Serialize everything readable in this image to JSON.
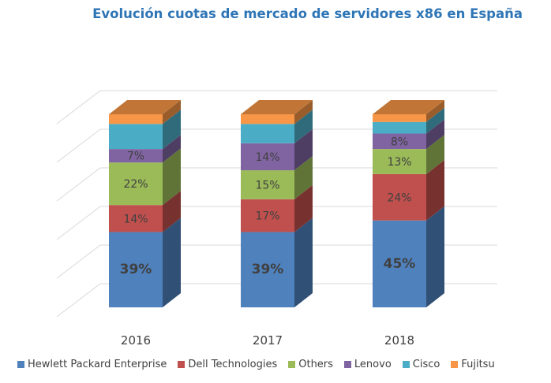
{
  "chart_data": {
    "type": "bar",
    "stacked": true,
    "three_d": true,
    "title": "Evolución cuotas de mercado de servidores x86 en España",
    "categories": [
      "2016",
      "2017",
      "2018"
    ],
    "ylim": [
      0,
      100
    ],
    "grid": true,
    "legend_position": "bottom",
    "series": [
      {
        "name": "Hewlett Packard Enterprise",
        "color": "#4f81bd",
        "values": [
          39,
          39,
          45
        ],
        "labels": [
          "39%",
          "39%",
          "45%"
        ]
      },
      {
        "name": "Dell Technologies",
        "color": "#c0504d",
        "values": [
          14,
          17,
          24
        ],
        "labels": [
          "14%",
          "17%",
          "24%"
        ]
      },
      {
        "name": "Others",
        "color": "#9bbb59",
        "values": [
          22,
          15,
          13
        ],
        "labels": [
          "22%",
          "15%",
          "13%"
        ]
      },
      {
        "name": "Lenovo",
        "color": "#8064a2",
        "values": [
          7,
          14,
          8
        ],
        "labels": [
          "7%",
          "14%",
          "8%"
        ]
      },
      {
        "name": "Cisco",
        "color": "#4bacc6",
        "values": [
          13,
          10,
          6
        ],
        "labels": [
          "",
          "",
          ""
        ]
      },
      {
        "name": "Fujitsu",
        "color": "#f79646",
        "values": [
          5,
          5,
          4
        ],
        "labels": [
          "",
          "",
          ""
        ]
      }
    ]
  }
}
